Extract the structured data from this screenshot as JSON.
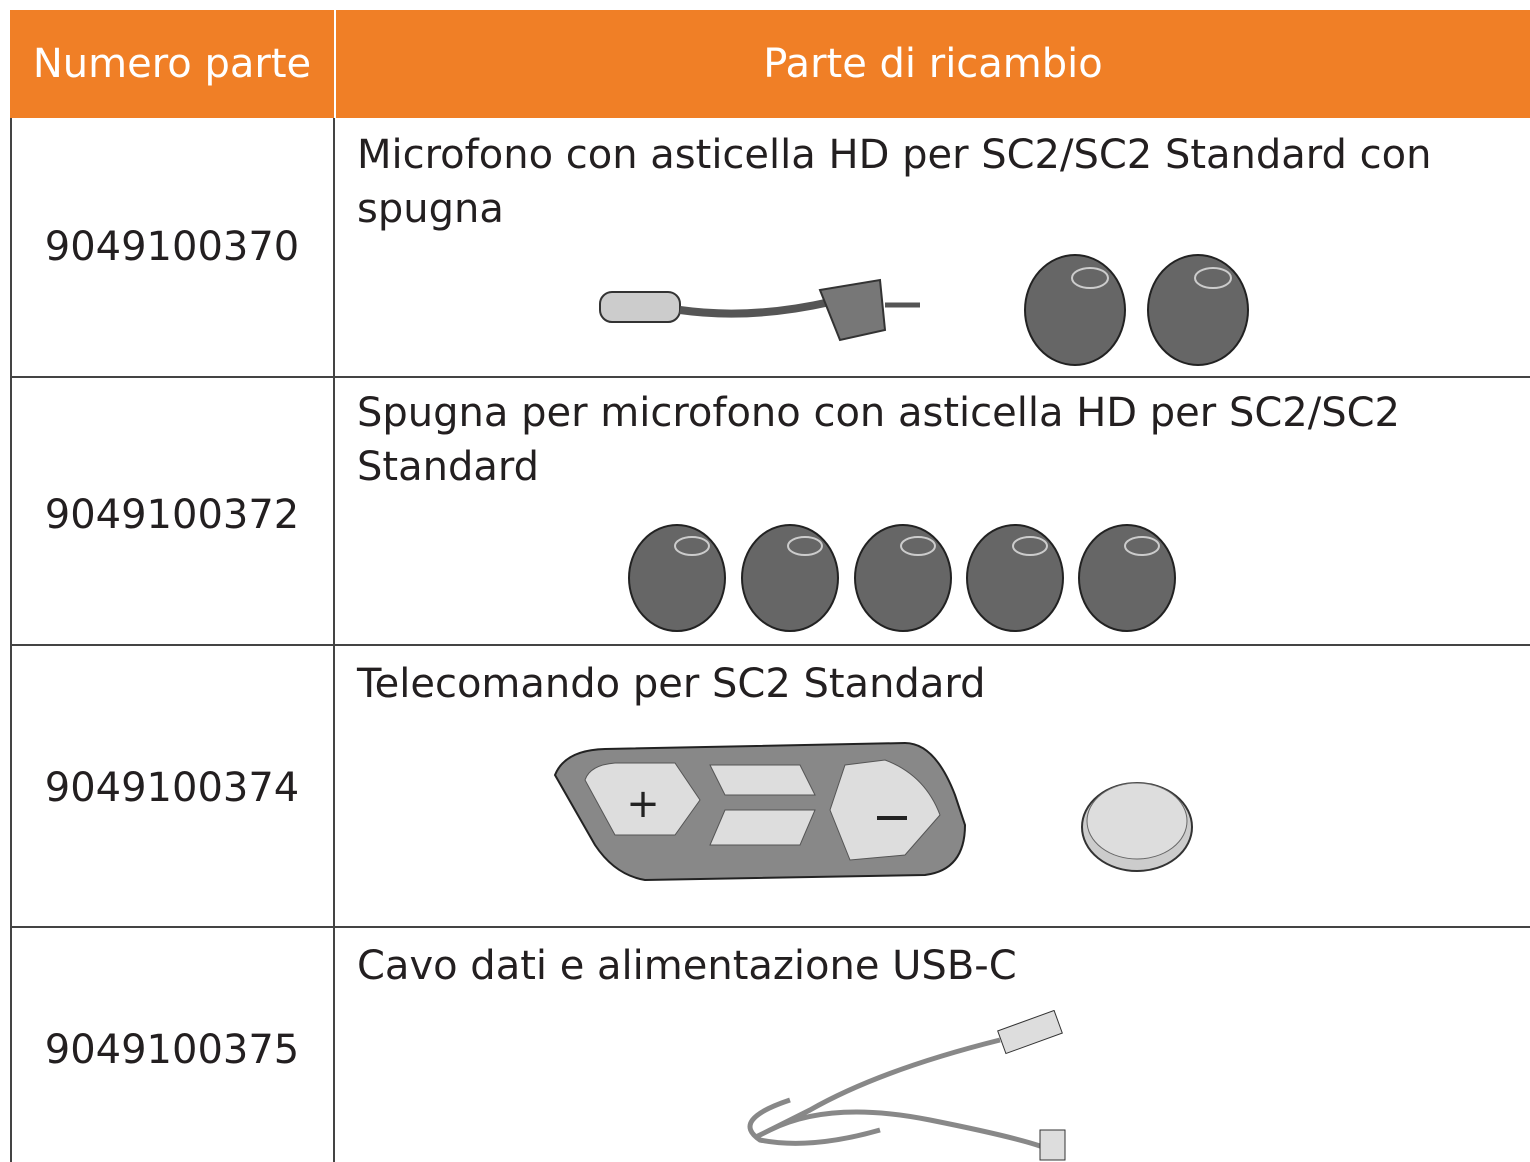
{
  "table": {
    "header": [
      "Numero parte",
      "Parte di ricambio"
    ],
    "rows": [
      [
        "9049100370",
        "Microfono con asticella HD per SC2/SC2 Standard con spugna"
      ],
      [
        "9049100372",
        "Spugna per microfono con asticella HD per SC2/SC2 Standard"
      ],
      [
        "9049100374",
        "Telecomando per SC2 Standard"
      ],
      [
        "9049100375",
        "Cavo dati e alimentazione USB-C"
      ]
    ]
  }
}
